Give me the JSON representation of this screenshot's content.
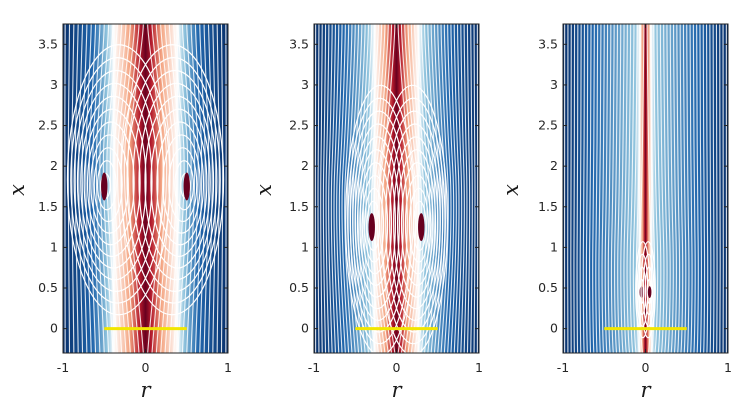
{
  "chart_data": [
    {
      "type": "heatmap",
      "xlabel": "r",
      "ylabel": "x",
      "xlim": [
        -1,
        1
      ],
      "ylim": [
        -0.3,
        3.75
      ],
      "x_ticks": [
        "-1",
        "0",
        "1"
      ],
      "y_ticks": [
        "0",
        "0.5",
        "1",
        "1.5",
        "2",
        "2.5",
        "3",
        "3.5"
      ],
      "colormap": [
        "#08306b",
        "#2166ac",
        "#92c5de",
        "#ffffff",
        "#f4a582",
        "#b2182b",
        "#67001f"
      ],
      "streamline_color": "#ffffff",
      "source_segment": {
        "x": [
          -0.5,
          0.5
        ],
        "y": 0,
        "color": "#f2e600"
      },
      "vortex_centers": [
        {
          "r": -0.5,
          "x": 1.75
        },
        {
          "r": 0.5,
          "x": 1.75
        }
      ]
    },
    {
      "type": "heatmap",
      "xlabel": "r",
      "ylabel": "x",
      "xlim": [
        -1,
        1
      ],
      "ylim": [
        -0.3,
        3.75
      ],
      "x_ticks": [
        "-1",
        "0",
        "1"
      ],
      "y_ticks": [
        "0",
        "0.5",
        "1",
        "1.5",
        "2",
        "2.5",
        "3",
        "3.5"
      ],
      "colormap": [
        "#08306b",
        "#2166ac",
        "#92c5de",
        "#ffffff",
        "#f4a582",
        "#b2182b",
        "#67001f"
      ],
      "streamline_color": "#ffffff",
      "source_segment": {
        "x": [
          -0.5,
          0.5
        ],
        "y": 0,
        "color": "#f2e600"
      },
      "vortex_centers": [
        {
          "r": -0.3,
          "x": 1.25
        },
        {
          "r": 0.3,
          "x": 1.25
        }
      ]
    },
    {
      "type": "heatmap",
      "xlabel": "r",
      "ylabel": "x",
      "xlim": [
        -1,
        1
      ],
      "ylim": [
        -0.3,
        3.75
      ],
      "x_ticks": [
        "-1",
        "0",
        "1"
      ],
      "y_ticks": [
        "0",
        "0.5",
        "1",
        "1.5",
        "2",
        "2.5",
        "3",
        "3.5"
      ],
      "colormap": [
        "#08306b",
        "#2166ac",
        "#92c5de",
        "#ffffff",
        "#f4a582",
        "#b2182b",
        "#67001f"
      ],
      "streamline_color": "#ffffff",
      "source_segment": {
        "x": [
          -0.5,
          0.5
        ],
        "y": 0,
        "color": "#f2e600"
      },
      "vortex_centers": [
        {
          "r": -0.05,
          "x": 0.45
        },
        {
          "r": 0.05,
          "x": 0.45
        }
      ]
    }
  ]
}
